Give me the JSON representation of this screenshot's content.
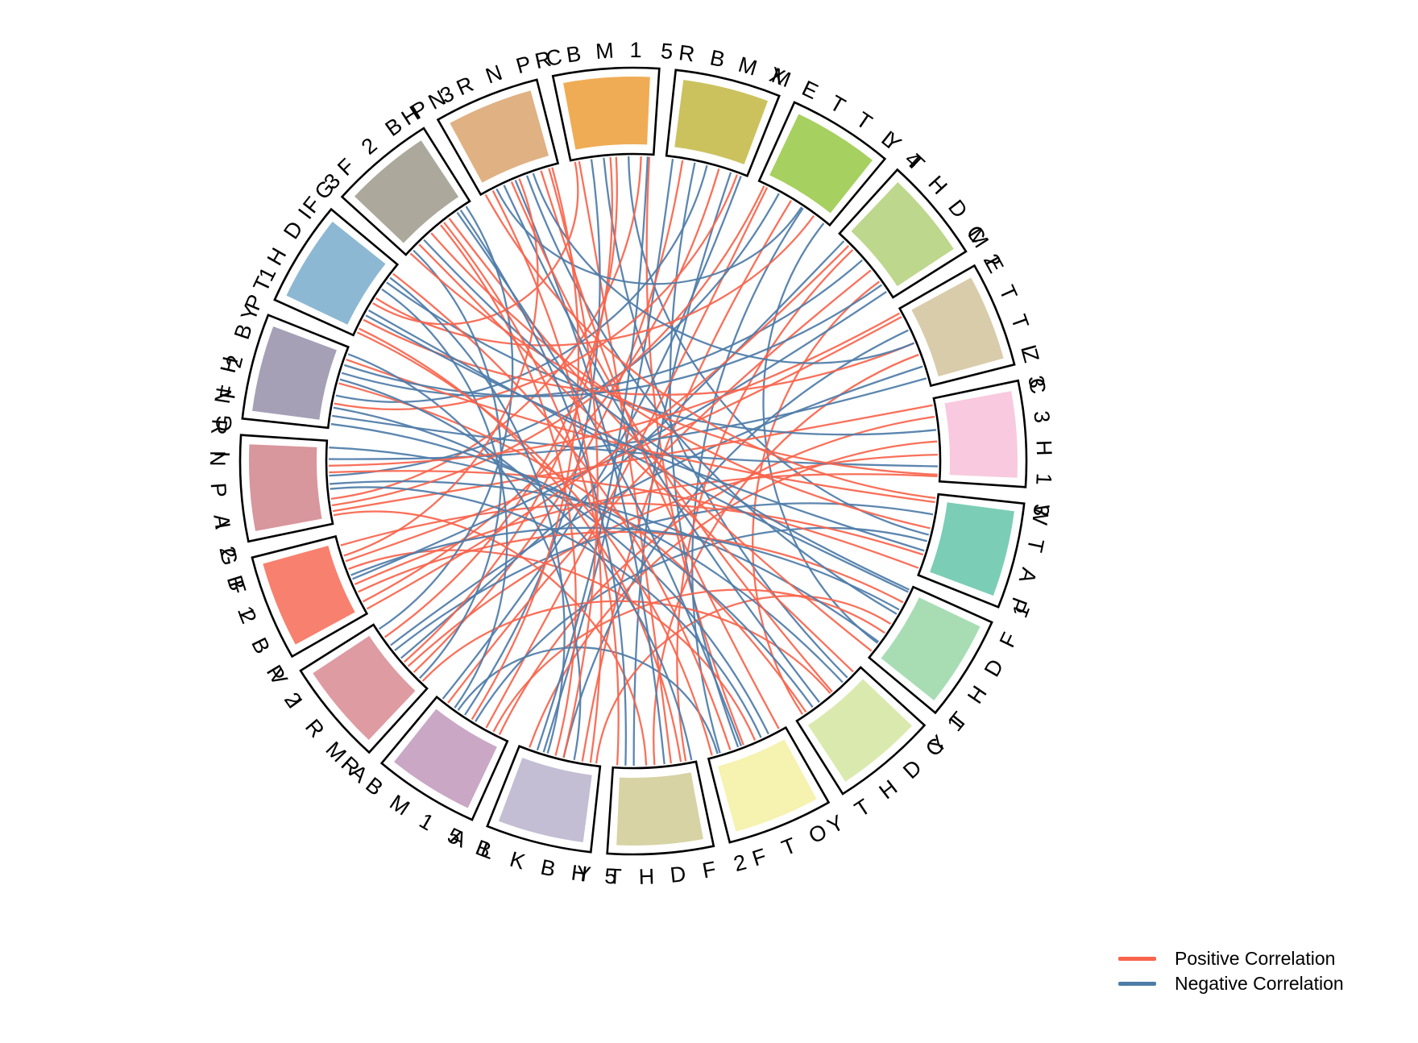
{
  "chart_data": {
    "type": "chord",
    "title": "",
    "description": "Circular chord diagram of correlations among m6A regulator genes",
    "background_color": "#ffffff",
    "sector_border_color": "#000000",
    "sectors": [
      {
        "name": "RBM15",
        "color": "#F0AC55"
      },
      {
        "name": "RBMX",
        "color": "#CBC25E"
      },
      {
        "name": "METTL4",
        "color": "#A6D05F"
      },
      {
        "name": "YTHDC2",
        "color": "#BDD78D"
      },
      {
        "name": "METTL3",
        "color": "#D9CCAB"
      },
      {
        "name": "ZC3H13",
        "color": "#F9C9DF"
      },
      {
        "name": "WTAP",
        "color": "#7BCDB6"
      },
      {
        "name": "YTHDF1",
        "color": "#A8DDB4"
      },
      {
        "name": "YTHDC1",
        "color": "#DAEAAE"
      },
      {
        "name": "FTO",
        "color": "#F6F2AF"
      },
      {
        "name": "YTHDF2",
        "color": "#D7D3A5"
      },
      {
        "name": "ALKBH5",
        "color": "#C3BED4"
      },
      {
        "name": "RBM15B",
        "color": "#C9A7C5"
      },
      {
        "name": "VIRMA",
        "color": "#DE9BA1"
      },
      {
        "name": "IGF2BP2",
        "color": "#F8806E"
      },
      {
        "name": "HNRNPA2B1",
        "color": "#D8969D"
      },
      {
        "name": "IGF2BP1",
        "color": "#A5A0B6"
      },
      {
        "name": "YTHDF3",
        "color": "#8CB8D3"
      },
      {
        "name": "IGF2BP3",
        "color": "#ACA89B"
      },
      {
        "name": "HNRNPC",
        "color": "#DFB183"
      }
    ],
    "link_colors": {
      "positive": "#F8644C",
      "negative": "#4E7CA8"
    },
    "links": [
      [
        0,
        0.1,
        10,
        0.3,
        "P"
      ],
      [
        0,
        0.25,
        12,
        0.6,
        "N"
      ],
      [
        0,
        0.4,
        8,
        0.2,
        "N"
      ],
      [
        0,
        0.55,
        13,
        0.8,
        "P"
      ],
      [
        0,
        0.7,
        6,
        0.5,
        "N"
      ],
      [
        0,
        0.85,
        15,
        0.3,
        "P"
      ],
      [
        0,
        0.95,
        9,
        0.55,
        "P"
      ],
      [
        1,
        0.08,
        11,
        0.7,
        "N"
      ],
      [
        1,
        0.2,
        13,
        0.25,
        "P"
      ],
      [
        1,
        0.35,
        9,
        0.62,
        "N"
      ],
      [
        1,
        0.5,
        16,
        0.4,
        "N"
      ],
      [
        1,
        0.65,
        14,
        0.15,
        "P"
      ],
      [
        1,
        0.8,
        10,
        0.75,
        "N"
      ],
      [
        1,
        0.93,
        12,
        0.93,
        "N"
      ],
      [
        2,
        0.12,
        12,
        0.3,
        "P"
      ],
      [
        2,
        0.28,
        15,
        0.58,
        "N"
      ],
      [
        2,
        0.45,
        11,
        0.22,
        "P"
      ],
      [
        2,
        0.62,
        9,
        0.85,
        "N"
      ],
      [
        2,
        0.78,
        17,
        0.52,
        "P"
      ],
      [
        2,
        0.93,
        7,
        0.8,
        "N"
      ],
      [
        3,
        0.1,
        13,
        0.48,
        "N"
      ],
      [
        3,
        0.25,
        10,
        0.12,
        "P"
      ],
      [
        3,
        0.42,
        16,
        0.68,
        "N"
      ],
      [
        3,
        0.58,
        12,
        0.85,
        "P"
      ],
      [
        3,
        0.75,
        8,
        0.9,
        "P"
      ],
      [
        3,
        0.9,
        14,
        0.45,
        "N"
      ],
      [
        4,
        0.1,
        14,
        0.68,
        "P"
      ],
      [
        4,
        0.28,
        11,
        0.45,
        "N"
      ],
      [
        4,
        0.45,
        17,
        0.22,
        "P"
      ],
      [
        4,
        0.6,
        10,
        0.5,
        "P"
      ],
      [
        4,
        0.75,
        13,
        0.68,
        "N"
      ],
      [
        4,
        0.9,
        15,
        0.78,
        "N"
      ],
      [
        5,
        0.08,
        15,
        0.15,
        "P"
      ],
      [
        5,
        0.22,
        12,
        0.12,
        "P"
      ],
      [
        5,
        0.38,
        17,
        0.75,
        "N"
      ],
      [
        5,
        0.52,
        11,
        0.88,
        "P"
      ],
      [
        5,
        0.68,
        13,
        0.35,
        "P"
      ],
      [
        5,
        0.82,
        16,
        0.15,
        "N"
      ],
      [
        5,
        0.94,
        14,
        0.38,
        "P"
      ],
      [
        6,
        0.1,
        16,
        0.85,
        "P"
      ],
      [
        6,
        0.25,
        13,
        0.6,
        "N"
      ],
      [
        6,
        0.42,
        18,
        0.4,
        "P"
      ],
      [
        6,
        0.58,
        12,
        0.45,
        "N"
      ],
      [
        6,
        0.75,
        14,
        0.88,
        "P"
      ],
      [
        6,
        0.92,
        15,
        0.62,
        "P"
      ],
      [
        7,
        0.08,
        17,
        0.35,
        "N"
      ],
      [
        7,
        0.22,
        14,
        0.28,
        "P"
      ],
      [
        7,
        0.38,
        19,
        0.6,
        "N"
      ],
      [
        7,
        0.52,
        11,
        0.05,
        "P"
      ],
      [
        7,
        0.65,
        12,
        0.2,
        "P"
      ],
      [
        7,
        0.78,
        15,
        0.48,
        "N"
      ],
      [
        7,
        0.92,
        18,
        0.68,
        "P"
      ],
      [
        8,
        0.1,
        18,
        0.2,
        "P"
      ],
      [
        8,
        0.28,
        15,
        0.92,
        "N"
      ],
      [
        8,
        0.48,
        13,
        0.1,
        "P"
      ],
      [
        8,
        0.65,
        19,
        0.3,
        "N"
      ],
      [
        8,
        0.85,
        16,
        0.55,
        "P"
      ],
      [
        9,
        0.08,
        19,
        0.78,
        "P"
      ],
      [
        9,
        0.22,
        16,
        0.25,
        "N"
      ],
      [
        9,
        0.4,
        14,
        0.58,
        "P"
      ],
      [
        9,
        0.58,
        18,
        0.8,
        "N"
      ],
      [
        9,
        0.72,
        17,
        0.88,
        "P"
      ],
      [
        9,
        0.88,
        12,
        0.7,
        "N"
      ],
      [
        10,
        0.18,
        17,
        0.1,
        "P"
      ],
      [
        10,
        0.38,
        19,
        0.45,
        "N"
      ],
      [
        10,
        0.6,
        15,
        0.1,
        "P"
      ],
      [
        10,
        0.85,
        18,
        0.85,
        "N"
      ],
      [
        11,
        0.12,
        19,
        0.15,
        "P"
      ],
      [
        11,
        0.32,
        16,
        0.92,
        "N"
      ],
      [
        11,
        0.55,
        18,
        0.55,
        "P"
      ],
      [
        11,
        0.78,
        0,
        0.93,
        "N"
      ],
      [
        12,
        0.5,
        19,
        0.92,
        "P"
      ],
      [
        12,
        0.75,
        17,
        0.65,
        "N"
      ],
      [
        13,
        0.15,
        18,
        0.1,
        "N"
      ],
      [
        13,
        0.42,
        0,
        0.48,
        "P"
      ],
      [
        13,
        0.92,
        18,
        0.93,
        "N"
      ],
      [
        14,
        0.05,
        3,
        0.18,
        "P"
      ],
      [
        14,
        0.5,
        7,
        0.32,
        "N"
      ],
      [
        14,
        0.75,
        19,
        0.5,
        "P"
      ],
      [
        15,
        0.22,
        2,
        0.08,
        "P"
      ],
      [
        15,
        0.42,
        9,
        0.32,
        "N"
      ],
      [
        15,
        0.7,
        4,
        0.05,
        "P"
      ],
      [
        16,
        0.05,
        8,
        0.75,
        "N"
      ],
      [
        16,
        0.3,
        1,
        0.88,
        "P"
      ],
      [
        16,
        0.6,
        10,
        0.05,
        "N"
      ],
      [
        16,
        0.78,
        3,
        0.8,
        "N"
      ],
      [
        17,
        0.05,
        9,
        0.95,
        "P"
      ],
      [
        17,
        0.28,
        6,
        0.7,
        "N"
      ],
      [
        17,
        0.45,
        0,
        0.05,
        "P"
      ],
      [
        17,
        0.82,
        11,
        0.65,
        "N"
      ],
      [
        18,
        0.05,
        5,
        0.92,
        "P"
      ],
      [
        18,
        0.28,
        7,
        0.05,
        "N"
      ],
      [
        18,
        0.6,
        10,
        0.95,
        "P"
      ],
      [
        19,
        0.05,
        6,
        0.05,
        "P"
      ],
      [
        19,
        0.2,
        2,
        0.6,
        "N"
      ],
      [
        19,
        0.4,
        8,
        0.45,
        "P"
      ],
      [
        19,
        0.68,
        4,
        0.45,
        "N"
      ],
      [
        19,
        0.88,
        11,
        0.45,
        "P"
      ]
    ],
    "legend": {
      "position": "bottom-right",
      "items": [
        {
          "label": "Positive Correlation",
          "color": "#F8644C"
        },
        {
          "label": "Negative Correlation",
          "color": "#4E7CA8"
        }
      ]
    }
  }
}
